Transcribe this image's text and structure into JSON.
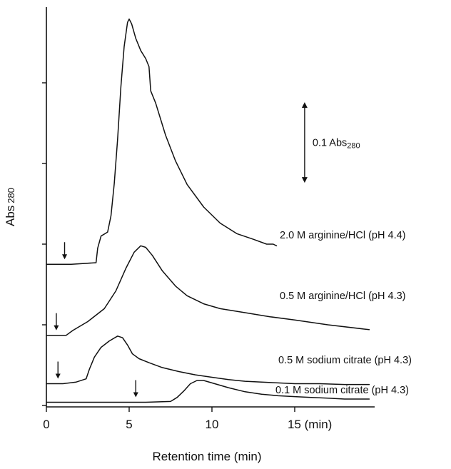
{
  "chart_data": {
    "type": "line",
    "title": "",
    "xlabel": "Retention time (min)",
    "ylabel": "Abs",
    "ylabel_sub": "280",
    "xlim": [
      0,
      20
    ],
    "x_ticks": [
      {
        "value": 0,
        "label": "0"
      },
      {
        "value": 5,
        "label": "5"
      },
      {
        "value": 10,
        "label": "10"
      },
      {
        "value": 15,
        "label": "15 (min)"
      }
    ],
    "y_ticks": [
      0,
      0.1,
      0.2,
      0.3,
      0.4
    ],
    "y_unit_note": "y values in Abs280 units, traces vertically offset (stacked); y=0 at lowest tick",
    "ylim": [
      0,
      0.49
    ],
    "scale_bar": {
      "label": "0.1 Abs",
      "label_sub": "280",
      "x": 15.6,
      "y_from": 0.276,
      "y_to": 0.376
    },
    "series": [
      {
        "name": "0.1 M sodium citrate (pH 4.3)",
        "injection_arrow_x": 5.4,
        "points": [
          [
            0,
            0.004
          ],
          [
            2,
            0.004
          ],
          [
            4,
            0.004
          ],
          [
            6,
            0.004
          ],
          [
            7.5,
            0.005
          ],
          [
            7.9,
            0.01
          ],
          [
            8.3,
            0.018
          ],
          [
            8.7,
            0.027
          ],
          [
            9.1,
            0.031
          ],
          [
            9.5,
            0.031
          ],
          [
            10,
            0.028
          ],
          [
            11,
            0.022
          ],
          [
            12,
            0.017
          ],
          [
            13,
            0.014
          ],
          [
            14,
            0.012
          ],
          [
            15,
            0.011
          ],
          [
            16,
            0.01
          ],
          [
            17,
            0.009
          ],
          [
            18,
            0.008
          ],
          [
            19.5,
            0.008
          ]
        ]
      },
      {
        "name": "0.5 M sodium citrate (pH 4.3)",
        "injection_arrow_x": 0.7,
        "points": [
          [
            0,
            0.027
          ],
          [
            1,
            0.027
          ],
          [
            1.8,
            0.029
          ],
          [
            2.4,
            0.033
          ],
          [
            2.6,
            0.045
          ],
          [
            2.9,
            0.06
          ],
          [
            3.3,
            0.072
          ],
          [
            3.8,
            0.08
          ],
          [
            4.3,
            0.086
          ],
          [
            4.6,
            0.084
          ],
          [
            4.9,
            0.075
          ],
          [
            5.2,
            0.064
          ],
          [
            5.6,
            0.058
          ],
          [
            6.2,
            0.053
          ],
          [
            7,
            0.047
          ],
          [
            8,
            0.042
          ],
          [
            9,
            0.038
          ],
          [
            10,
            0.035
          ],
          [
            11,
            0.032
          ],
          [
            12,
            0.03
          ],
          [
            13,
            0.029
          ],
          [
            14,
            0.028
          ],
          [
            15,
            0.027
          ],
          [
            16.5,
            0.027
          ],
          [
            18,
            0.026
          ],
          [
            19.5,
            0.026
          ]
        ]
      },
      {
        "name": "0.5 M arginine/HCl (pH 4.3)",
        "injection_arrow_x": 0.6,
        "points": [
          [
            0,
            0.087
          ],
          [
            0.6,
            0.087
          ],
          [
            1.2,
            0.087
          ],
          [
            1.6,
            0.093
          ],
          [
            2.5,
            0.104
          ],
          [
            3.5,
            0.12
          ],
          [
            4.2,
            0.142
          ],
          [
            4.8,
            0.17
          ],
          [
            5.3,
            0.19
          ],
          [
            5.7,
            0.198
          ],
          [
            6,
            0.196
          ],
          [
            6.4,
            0.186
          ],
          [
            7,
            0.167
          ],
          [
            7.8,
            0.148
          ],
          [
            8.5,
            0.136
          ],
          [
            9.5,
            0.126
          ],
          [
            10.5,
            0.12
          ],
          [
            12,
            0.115
          ],
          [
            13.5,
            0.11
          ],
          [
            15,
            0.106
          ],
          [
            17,
            0.1
          ],
          [
            19.5,
            0.094
          ]
        ]
      },
      {
        "name": "2.0 M arginine/HCl (pH 4.4)",
        "injection_arrow_x": 1.1,
        "points": [
          [
            0,
            0.175
          ],
          [
            1.5,
            0.175
          ],
          [
            3,
            0.177
          ],
          [
            3.1,
            0.195
          ],
          [
            3.3,
            0.21
          ],
          [
            3.7,
            0.215
          ],
          [
            3.9,
            0.235
          ],
          [
            4.1,
            0.275
          ],
          [
            4.3,
            0.33
          ],
          [
            4.5,
            0.395
          ],
          [
            4.7,
            0.445
          ],
          [
            4.9,
            0.475
          ],
          [
            5.0,
            0.479
          ],
          [
            5.15,
            0.473
          ],
          [
            5.4,
            0.455
          ],
          [
            5.7,
            0.44
          ],
          [
            6,
            0.43
          ],
          [
            6.2,
            0.42
          ],
          [
            6.3,
            0.39
          ],
          [
            6.6,
            0.375
          ],
          [
            7.2,
            0.335
          ],
          [
            7.8,
            0.303
          ],
          [
            8.5,
            0.274
          ],
          [
            9.5,
            0.246
          ],
          [
            10.5,
            0.226
          ],
          [
            11.5,
            0.213
          ],
          [
            12.5,
            0.206
          ],
          [
            13.3,
            0.2
          ],
          [
            13.7,
            0.2
          ],
          [
            13.9,
            0.198
          ]
        ]
      }
    ],
    "legend": "inline labels next to each trace"
  }
}
